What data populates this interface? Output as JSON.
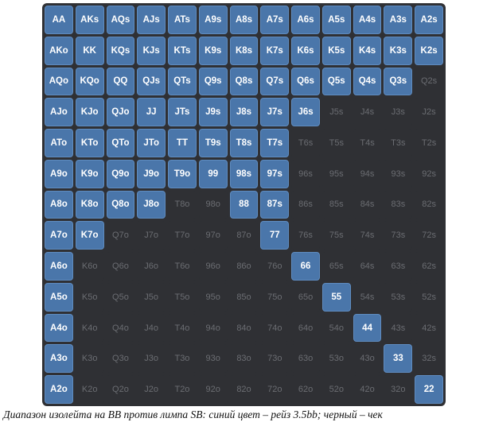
{
  "colors": {
    "raise": "#4a76aa",
    "check": "#2f3034",
    "raise_text": "#ffffff",
    "check_text": "#6b6d72"
  },
  "range": {
    "ranks": [
      "A",
      "K",
      "Q",
      "J",
      "T",
      "9",
      "8",
      "7",
      "6",
      "5",
      "4",
      "3",
      "2"
    ],
    "raise": [
      "AA",
      "AKs",
      "AQs",
      "AJs",
      "ATs",
      "A9s",
      "A8s",
      "A7s",
      "A6s",
      "A5s",
      "A4s",
      "A3s",
      "A2s",
      "AKo",
      "KK",
      "KQs",
      "KJs",
      "KTs",
      "K9s",
      "K8s",
      "K7s",
      "K6s",
      "K5s",
      "K4s",
      "K3s",
      "K2s",
      "AQo",
      "KQo",
      "QQ",
      "QJs",
      "QTs",
      "Q9s",
      "Q8s",
      "Q7s",
      "Q6s",
      "Q5s",
      "Q4s",
      "Q3s",
      "AJo",
      "KJo",
      "QJo",
      "JJ",
      "JTs",
      "J9s",
      "J8s",
      "J7s",
      "J6s",
      "ATo",
      "KTo",
      "QTo",
      "JTo",
      "TT",
      "T9s",
      "T8s",
      "T7s",
      "A9o",
      "K9o",
      "Q9o",
      "J9o",
      "T9o",
      "99",
      "98s",
      "97s",
      "A8o",
      "K8o",
      "Q8o",
      "J8o",
      "88",
      "87s",
      "A7o",
      "K7o",
      "77",
      "A6o",
      "66",
      "A5o",
      "55",
      "A4o",
      "44",
      "A3o",
      "33",
      "A2o",
      "22"
    ]
  },
  "caption": "Диапазон изолейта на BB против лимпа SB: синий цвет – рейз 3.5bb; черный – чек"
}
